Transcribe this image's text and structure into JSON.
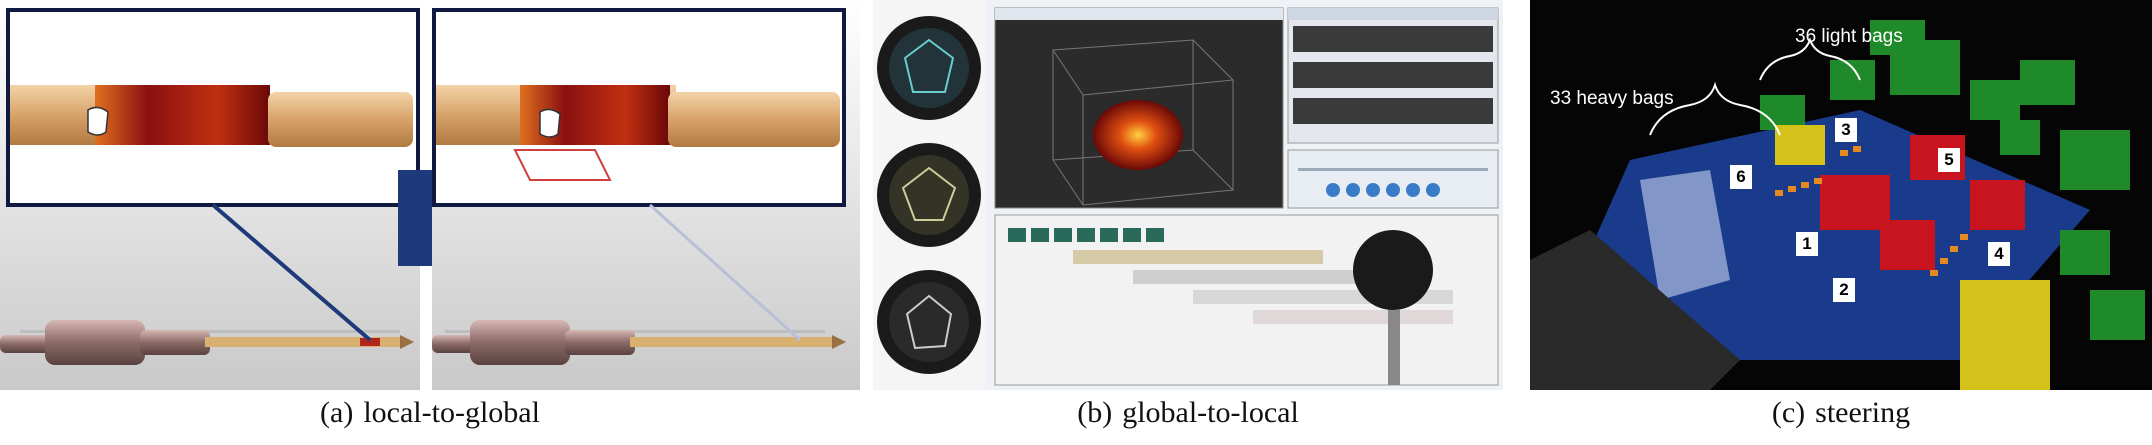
{
  "panels": [
    {
      "letter": "(a)",
      "caption": "local-to-global"
    },
    {
      "letter": "(b)",
      "caption": "global-to-local"
    },
    {
      "letter": "(c)",
      "caption": "steering"
    }
  ],
  "steering": {
    "heavy_bags_label": "33 heavy bags",
    "light_bags_label": "36 light bags",
    "markers": [
      "1",
      "2",
      "3",
      "4",
      "5",
      "6"
    ]
  },
  "colors": {
    "arrow_blue": "#1f3a7a",
    "pipe_heat": "#b3261e",
    "heavy_bag": "#d4c21a",
    "light_bag": "#1f8a2a",
    "building_red": "#c8141e",
    "water": "#1a3a8c"
  }
}
